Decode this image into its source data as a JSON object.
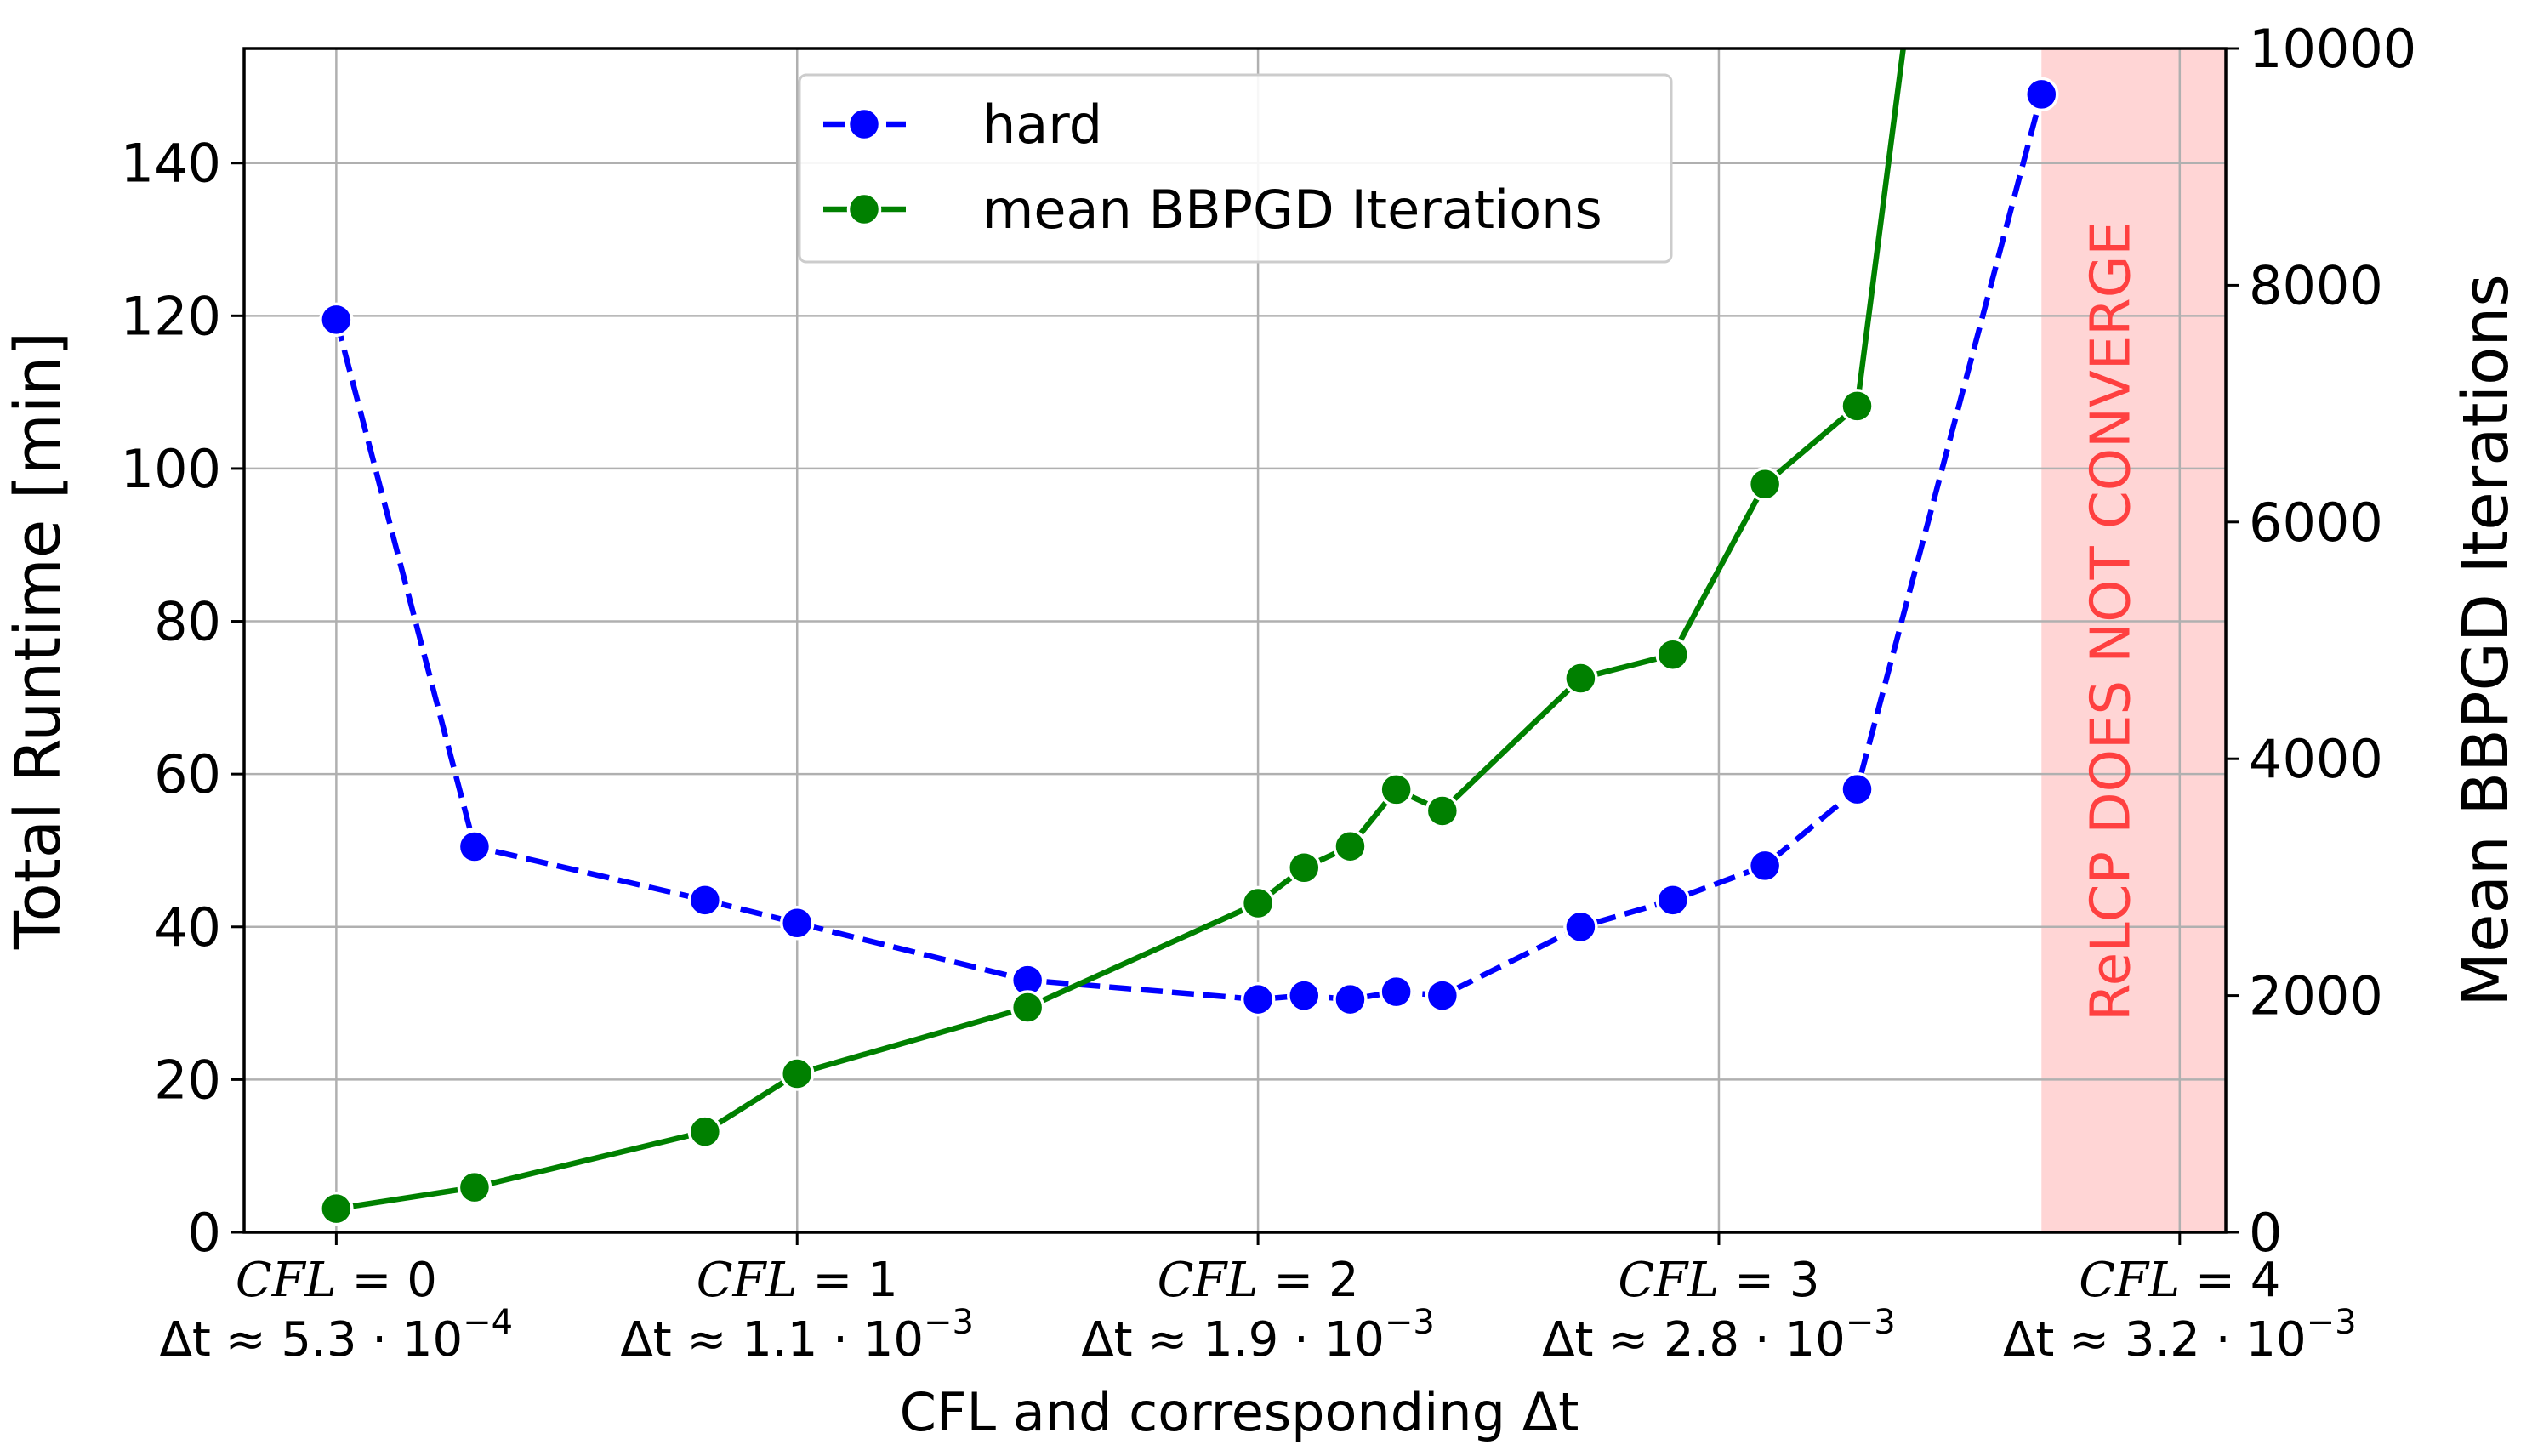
{
  "chart_data": {
    "type": "line",
    "xlabel": "CFL and corresponding Δt",
    "ylabel_left": "Total Runtime [min]",
    "ylabel_right": "Mean BBPGD Iterations",
    "xlim": [
      -0.2,
      4.1
    ],
    "ylim_left": [
      0,
      155
    ],
    "ylim_right": [
      0,
      10000
    ],
    "grid": true,
    "legend_position": "top-center",
    "x_ticks": [
      {
        "value": 0,
        "line1": "CFL = 0",
        "dt_base": "Δt ≈ 5.3 · 10",
        "dt_exp": "−4"
      },
      {
        "value": 1,
        "line1": "CFL = 1",
        "dt_base": "Δt ≈ 1.1 · 10",
        "dt_exp": "−3"
      },
      {
        "value": 2,
        "line1": "CFL = 2",
        "dt_base": "Δt ≈ 1.9 · 10",
        "dt_exp": "−3"
      },
      {
        "value": 3,
        "line1": "CFL = 3",
        "dt_base": "Δt ≈ 2.8 · 10",
        "dt_exp": "−3"
      },
      {
        "value": 4,
        "line1": "CFL = 4",
        "dt_base": "Δt ≈ 3.2 · 10",
        "dt_exp": "−3"
      }
    ],
    "y_ticks_left": [
      0,
      20,
      40,
      60,
      80,
      100,
      120,
      140
    ],
    "y_ticks_right": [
      0,
      2000,
      4000,
      6000,
      8000,
      10000
    ],
    "series": [
      {
        "name": "hard",
        "axis": "left",
        "color": "#0000ff",
        "line_style": "dashed",
        "x": [
          0,
          0.3,
          0.8,
          1.0,
          1.5,
          2.0,
          2.1,
          2.2,
          2.3,
          2.4,
          2.7,
          2.9,
          3.1,
          3.3,
          3.7
        ],
        "y": [
          119.5,
          50.5,
          43.5,
          40.5,
          33,
          30.5,
          31,
          30.5,
          31.5,
          31,
          40,
          43.5,
          48,
          58,
          149
        ]
      },
      {
        "name": "mean BBPGD Iterations",
        "axis": "right",
        "color": "#008000",
        "line_style": "solid",
        "x": [
          0,
          0.3,
          0.8,
          1.0,
          1.5,
          2.0,
          2.1,
          2.2,
          2.3,
          2.4,
          2.7,
          2.9,
          3.1,
          3.3,
          3.4
        ],
        "y": [
          200,
          380,
          850,
          1340,
          1900,
          2780,
          3080,
          3260,
          3740,
          3560,
          4680,
          4880,
          6320,
          6980,
          10000
        ],
        "last_point_marker": false
      }
    ],
    "shaded_region": {
      "x_start": 3.7,
      "x_end": 4.1,
      "color": "#ffb3b3",
      "label": "ReLCP DOES NOT CONVERGE",
      "label_color": "#ff4040"
    }
  }
}
